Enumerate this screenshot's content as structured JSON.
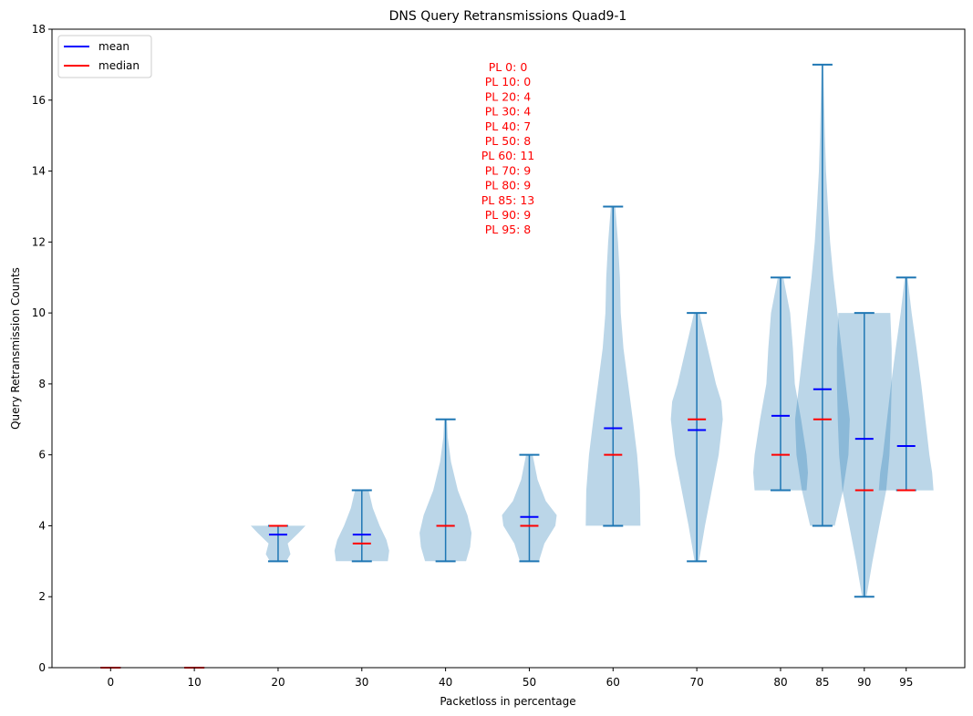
{
  "chart_data": {
    "type": "violin",
    "title": "DNS Query Retransmissions Quad9-1",
    "xlabel": "Packetloss in percentage",
    "ylabel": "Query Retransmission Counts",
    "ylim": [
      0,
      18
    ],
    "yticks": [
      0,
      2,
      4,
      6,
      8,
      10,
      12,
      14,
      16,
      18
    ],
    "xlim": [
      -7,
      102
    ],
    "legend": {
      "placement": "top-left",
      "entries": [
        {
          "label": "mean",
          "color": "#0000ff"
        },
        {
          "label": "median",
          "color": "#ff0000"
        }
      ]
    },
    "colors": {
      "violin_fill": "#1f77b4",
      "whisker": "#1f77b4",
      "mean": "#0000ff",
      "median": "#ff0000"
    },
    "violins": [
      {
        "x": 0,
        "label": "0",
        "min": 0,
        "max": 0,
        "mean": 0,
        "median": 0,
        "profile": []
      },
      {
        "x": 10,
        "label": "10",
        "min": 0,
        "max": 0,
        "mean": 0,
        "median": 0,
        "profile": []
      },
      {
        "x": 20,
        "label": "20",
        "min": 3,
        "max": 4,
        "mean": 3.75,
        "median": 4,
        "profile": [
          [
            3,
            0.3
          ],
          [
            3.2,
            0.45
          ],
          [
            3.5,
            0.35
          ],
          [
            3.8,
            0.75
          ],
          [
            4,
            1.0
          ]
        ]
      },
      {
        "x": 30,
        "label": "30",
        "min": 3,
        "max": 5,
        "mean": 3.75,
        "median": 3.5,
        "profile": [
          [
            3,
            0.95
          ],
          [
            3.3,
            1.0
          ],
          [
            3.6,
            0.9
          ],
          [
            4,
            0.65
          ],
          [
            4.5,
            0.4
          ],
          [
            5,
            0.25
          ]
        ]
      },
      {
        "x": 40,
        "label": "40",
        "min": 3,
        "max": 7,
        "mean": 4,
        "median": 4,
        "profile": [
          [
            3,
            0.75
          ],
          [
            3.4,
            0.9
          ],
          [
            3.8,
            0.95
          ],
          [
            4.3,
            0.8
          ],
          [
            5,
            0.45
          ],
          [
            5.8,
            0.2
          ],
          [
            6.5,
            0.08
          ],
          [
            7,
            0.05
          ]
        ]
      },
      {
        "x": 50,
        "label": "50",
        "min": 3,
        "max": 6,
        "mean": 4.25,
        "median": 4,
        "profile": [
          [
            3,
            0.35
          ],
          [
            3.5,
            0.55
          ],
          [
            4,
            0.95
          ],
          [
            4.3,
            1.0
          ],
          [
            4.7,
            0.6
          ],
          [
            5.3,
            0.3
          ],
          [
            6,
            0.12
          ]
        ]
      },
      {
        "x": 60,
        "label": "60",
        "min": 4,
        "max": 13,
        "mean": 6.75,
        "median": 6,
        "profile": [
          [
            4,
            1.0
          ],
          [
            5,
            0.98
          ],
          [
            6,
            0.88
          ],
          [
            7,
            0.72
          ],
          [
            8,
            0.55
          ],
          [
            9,
            0.38
          ],
          [
            10,
            0.28
          ],
          [
            11,
            0.25
          ],
          [
            12,
            0.18
          ],
          [
            13,
            0.08
          ]
        ]
      },
      {
        "x": 70,
        "label": "70",
        "min": 3,
        "max": 10,
        "mean": 6.7,
        "median": 7,
        "profile": [
          [
            3,
            0.08
          ],
          [
            4,
            0.3
          ],
          [
            5,
            0.55
          ],
          [
            6,
            0.8
          ],
          [
            7,
            0.95
          ],
          [
            7.5,
            0.9
          ],
          [
            8,
            0.7
          ],
          [
            9,
            0.4
          ],
          [
            10,
            0.1
          ]
        ]
      },
      {
        "x": 80,
        "label": "80",
        "min": 5,
        "max": 11,
        "mean": 7.1,
        "median": 6,
        "profile": [
          [
            5,
            0.95
          ],
          [
            5.5,
            1.0
          ],
          [
            6,
            0.95
          ],
          [
            7,
            0.75
          ],
          [
            8,
            0.52
          ],
          [
            9,
            0.45
          ],
          [
            10,
            0.35
          ],
          [
            11,
            0.1
          ]
        ]
      },
      {
        "x": 85,
        "label": "85",
        "min": 4,
        "max": 17,
        "mean": 7.85,
        "median": 7,
        "profile": [
          [
            4,
            0.45
          ],
          [
            5,
            0.75
          ],
          [
            6,
            0.95
          ],
          [
            7,
            1.0
          ],
          [
            8,
            0.85
          ],
          [
            9,
            0.7
          ],
          [
            10,
            0.55
          ],
          [
            11,
            0.4
          ],
          [
            12,
            0.28
          ],
          [
            13,
            0.2
          ],
          [
            14,
            0.13
          ],
          [
            15,
            0.09
          ],
          [
            16,
            0.06
          ],
          [
            17,
            0.03
          ]
        ]
      },
      {
        "x": 90,
        "label": "90",
        "min": 2,
        "max": 10,
        "mean": 6.45,
        "median": 5,
        "profile": [
          [
            2,
            0.08
          ],
          [
            3,
            0.3
          ],
          [
            4,
            0.55
          ],
          [
            5,
            0.8
          ],
          [
            6,
            0.92
          ],
          [
            7,
            0.97
          ],
          [
            8,
            1.0
          ],
          [
            9,
            1.0
          ],
          [
            10,
            0.95
          ]
        ]
      },
      {
        "x": 95,
        "label": "95",
        "min": 5,
        "max": 11,
        "mean": 6.25,
        "median": 5,
        "profile": [
          [
            5,
            1.0
          ],
          [
            5.5,
            0.95
          ],
          [
            6,
            0.85
          ],
          [
            7,
            0.7
          ],
          [
            8,
            0.55
          ],
          [
            9,
            0.38
          ],
          [
            10,
            0.2
          ],
          [
            11,
            0.05
          ]
        ]
      }
    ],
    "annotations": [
      "PL 0: 0",
      "PL 10: 0",
      "PL 20: 4",
      "PL 30: 4",
      "PL 40: 7",
      "PL 50: 8",
      "PL 60: 11",
      "PL 70: 9",
      "PL 80: 9",
      "PL 85: 13",
      "PL 90: 9",
      "PL 95: 8"
    ]
  }
}
